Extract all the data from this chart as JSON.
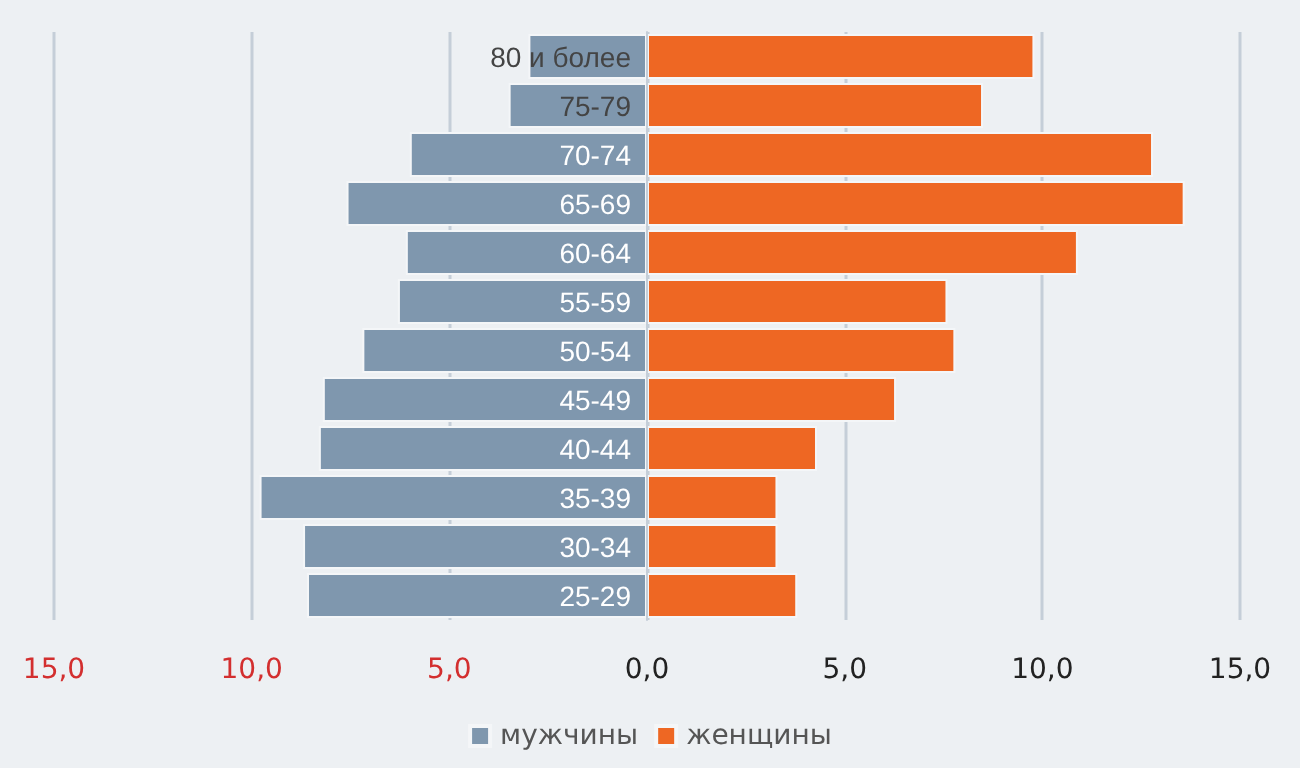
{
  "chart_data": {
    "type": "bar",
    "orientation": "horizontal",
    "categories": [
      "80 и более",
      "75-79",
      "70-74",
      "65-69",
      "60-64",
      "55-59",
      "50-54",
      "45-49",
      "40-44",
      "35-39",
      "30-34",
      "25-29"
    ],
    "series": [
      {
        "name": "мужчины",
        "color": "#7f97ae",
        "values": [
          -3.0,
          -3.5,
          -6.0,
          -7.6,
          -6.1,
          -6.3,
          -7.2,
          -8.2,
          -8.3,
          -9.8,
          -8.7,
          -8.6
        ]
      },
      {
        "name": "женщины",
        "color": "#ee6723",
        "values": [
          9.8,
          8.5,
          12.8,
          13.6,
          10.9,
          7.6,
          7.8,
          6.3,
          4.3,
          3.3,
          3.3,
          3.8
        ]
      }
    ],
    "xlim": [
      -15,
      15
    ],
    "xticks": [
      {
        "value": -15,
        "label": "15,0"
      },
      {
        "value": -10,
        "label": "10,0"
      },
      {
        "value": -5,
        "label": "5,0"
      },
      {
        "value": 0,
        "label": "0,0"
      },
      {
        "value": 5,
        "label": "5,0"
      },
      {
        "value": 10,
        "label": "10,0"
      },
      {
        "value": 15,
        "label": "15,0"
      }
    ],
    "stacked": true,
    "grid": "x",
    "legend": "bottom"
  }
}
